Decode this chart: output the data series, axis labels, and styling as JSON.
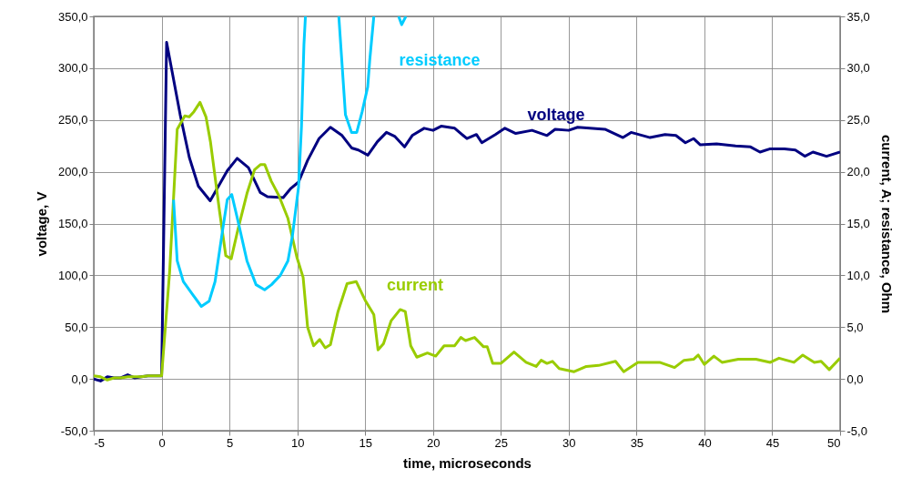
{
  "chart_data": {
    "type": "line",
    "xlabel": "time, microseconds",
    "ylabel": "voltage, V",
    "y2label": "current, A; resistance, Ohm",
    "xlim": [
      -5,
      50
    ],
    "xticks": [
      -5,
      0,
      5,
      10,
      15,
      20,
      25,
      30,
      35,
      40,
      45,
      50
    ],
    "ylim": [
      -50,
      350
    ],
    "yticks": [
      {
        "value": -50,
        "label": "-50,0"
      },
      {
        "value": 0,
        "label": "0,0"
      },
      {
        "value": 50,
        "label": "50,0"
      },
      {
        "value": 100,
        "label": "100,0"
      },
      {
        "value": 150,
        "label": "150,0"
      },
      {
        "value": 200,
        "label": "200,0"
      },
      {
        "value": 250,
        "label": "250,0"
      },
      {
        "value": 300,
        "label": "300,0"
      },
      {
        "value": 350,
        "label": "350,0"
      }
    ],
    "y2lim": [
      -5,
      35
    ],
    "y2ticks": [
      {
        "value": -5,
        "label": "-5,0"
      },
      {
        "value": 0,
        "label": "0,0"
      },
      {
        "value": 5,
        "label": "5,0"
      },
      {
        "value": 10,
        "label": "10,0"
      },
      {
        "value": 15,
        "label": "15,0"
      },
      {
        "value": 20,
        "label": "20,0"
      },
      {
        "value": 25,
        "label": "25,0"
      },
      {
        "value": 30,
        "label": "30,0"
      },
      {
        "value": 35,
        "label": "35,0"
      }
    ],
    "grid": true,
    "legend": false,
    "marker": "none",
    "line_style": "solid",
    "series": [
      {
        "name": "voltage",
        "color": "#000080",
        "x": [
          -5,
          -4.5,
          -4,
          -3.5,
          -3,
          -2.5,
          -2,
          -1.5,
          -1,
          -0.5,
          0,
          0.37,
          1.37,
          2.04,
          2.71,
          3.58,
          4.84,
          5.57,
          6.4,
          7.27,
          7.8,
          8.96,
          9.53,
          10.09,
          10.76,
          11.6,
          12.44,
          13.3,
          14.0,
          14.5,
          15.2,
          15.9,
          16.57,
          17.2,
          17.9,
          18.47,
          19.35,
          20.0,
          20.6,
          21.6,
          22.5,
          23.2,
          23.6,
          24.6,
          25.3,
          26.1,
          27.3,
          28.4,
          29.0,
          30.0,
          30.66,
          32.67,
          34.0,
          34.6,
          36.0,
          37.1,
          37.9,
          38.6,
          39.2,
          39.7,
          40.9,
          42.3,
          43.4,
          44.1,
          44.8,
          45.9,
          46.7,
          47.4,
          48.0,
          49.0,
          50
        ],
        "values": [
          0,
          -2,
          2,
          1,
          1,
          4,
          1,
          2,
          3,
          3,
          3,
          325,
          255,
          214,
          186,
          172,
          201,
          213,
          204,
          180,
          176,
          175,
          184,
          190,
          211,
          232,
          243,
          235,
          223,
          221,
          216,
          229,
          238,
          234,
          224,
          235,
          242,
          240,
          244,
          242,
          232,
          236,
          228,
          236,
          242,
          237,
          240,
          235,
          241,
          240,
          243,
          241,
          233,
          238,
          233,
          236,
          235,
          228,
          232,
          226,
          227,
          225,
          224,
          219,
          222,
          222,
          221,
          215,
          219,
          215,
          219
        ]
      },
      {
        "name": "current",
        "color": "#99cc00",
        "axis": "y2",
        "x": [
          -5,
          -4.5,
          -4,
          -3.5,
          -3,
          -2.5,
          -2,
          -1.5,
          -1,
          -0.5,
          0,
          0.59,
          1.15,
          1.71,
          2.04,
          2.38,
          2.83,
          3.27,
          3.6,
          4.28,
          4.73,
          5.13,
          5.62,
          6.29,
          6.85,
          7.3,
          7.6,
          8.08,
          8.64,
          9.31,
          9.98,
          10.43,
          10.76,
          11.2,
          11.65,
          12.06,
          12.44,
          13.0,
          13.67,
          14.34,
          15.0,
          15.64,
          15.95,
          16.35,
          16.91,
          17.58,
          17.96,
          18.36,
          18.81,
          19.59,
          20.2,
          20.82,
          21.6,
          22.05,
          22.4,
          23.06,
          23.73,
          24.0,
          24.4,
          25.0,
          25.97,
          26.86,
          27.6,
          27.97,
          28.4,
          28.8,
          29.3,
          30.4,
          31.3,
          32.2,
          33.45,
          34.05,
          35.1,
          36.7,
          37.8,
          38.5,
          39.2,
          39.55,
          40.0,
          40.7,
          41.3,
          42.5,
          43.8,
          44.86,
          45.5,
          46.6,
          47.25,
          48.1,
          48.6,
          49.2,
          50
        ],
        "values": [
          0.3,
          0.2,
          -0.1,
          0.1,
          0.1,
          0.2,
          0.2,
          0.2,
          0.3,
          0.3,
          0.3,
          10.3,
          24.1,
          25.4,
          25.3,
          25.8,
          26.7,
          25.3,
          22.9,
          16.1,
          11.9,
          11.6,
          14.4,
          17.9,
          20.2,
          20.7,
          20.7,
          19.1,
          17.7,
          15.5,
          11.7,
          9.8,
          5.0,
          3.2,
          3.8,
          3.0,
          3.3,
          6.5,
          9.2,
          9.4,
          7.6,
          6.2,
          2.8,
          3.4,
          5.6,
          6.7,
          6.5,
          3.2,
          2.1,
          2.5,
          2.2,
          3.2,
          3.2,
          4.0,
          3.7,
          4.0,
          3.1,
          3.1,
          1.5,
          1.5,
          2.6,
          1.6,
          1.2,
          1.8,
          1.5,
          1.7,
          1.0,
          0.7,
          1.2,
          1.3,
          1.7,
          0.7,
          1.6,
          1.6,
          1.1,
          1.8,
          1.9,
          2.3,
          1.4,
          2.2,
          1.6,
          1.9,
          1.9,
          1.6,
          2.0,
          1.6,
          2.3,
          1.6,
          1.7,
          0.9,
          2.0
        ]
      },
      {
        "name": "resistance",
        "color": "#00ccff",
        "axis": "y2",
        "x": [
          0.88,
          1.15,
          1.6,
          2.26,
          2.93,
          3.5,
          3.94,
          4.5,
          4.84,
          5.17,
          5.62,
          6.29,
          6.96,
          7.59,
          8.1,
          8.75,
          9.31,
          9.64,
          10.09,
          10.31,
          10.49,
          10.6,
          12.0,
          13.06,
          13.55,
          14.0,
          14.38,
          14.78,
          15.19,
          15.34,
          15.64,
          16.5,
          17.47,
          17.69,
          18.0
        ],
        "values": [
          17.3,
          11.4,
          9.4,
          8.2,
          7.0,
          7.5,
          9.4,
          14.4,
          17.3,
          17.8,
          15.3,
          11.4,
          9.1,
          8.6,
          9.1,
          10.0,
          11.4,
          13.8,
          18.5,
          24.4,
          32.3,
          35,
          null,
          35,
          25.5,
          23.8,
          23.8,
          25.8,
          28.2,
          30.8,
          35,
          null,
          35,
          34.2,
          35
        ]
      }
    ]
  }
}
